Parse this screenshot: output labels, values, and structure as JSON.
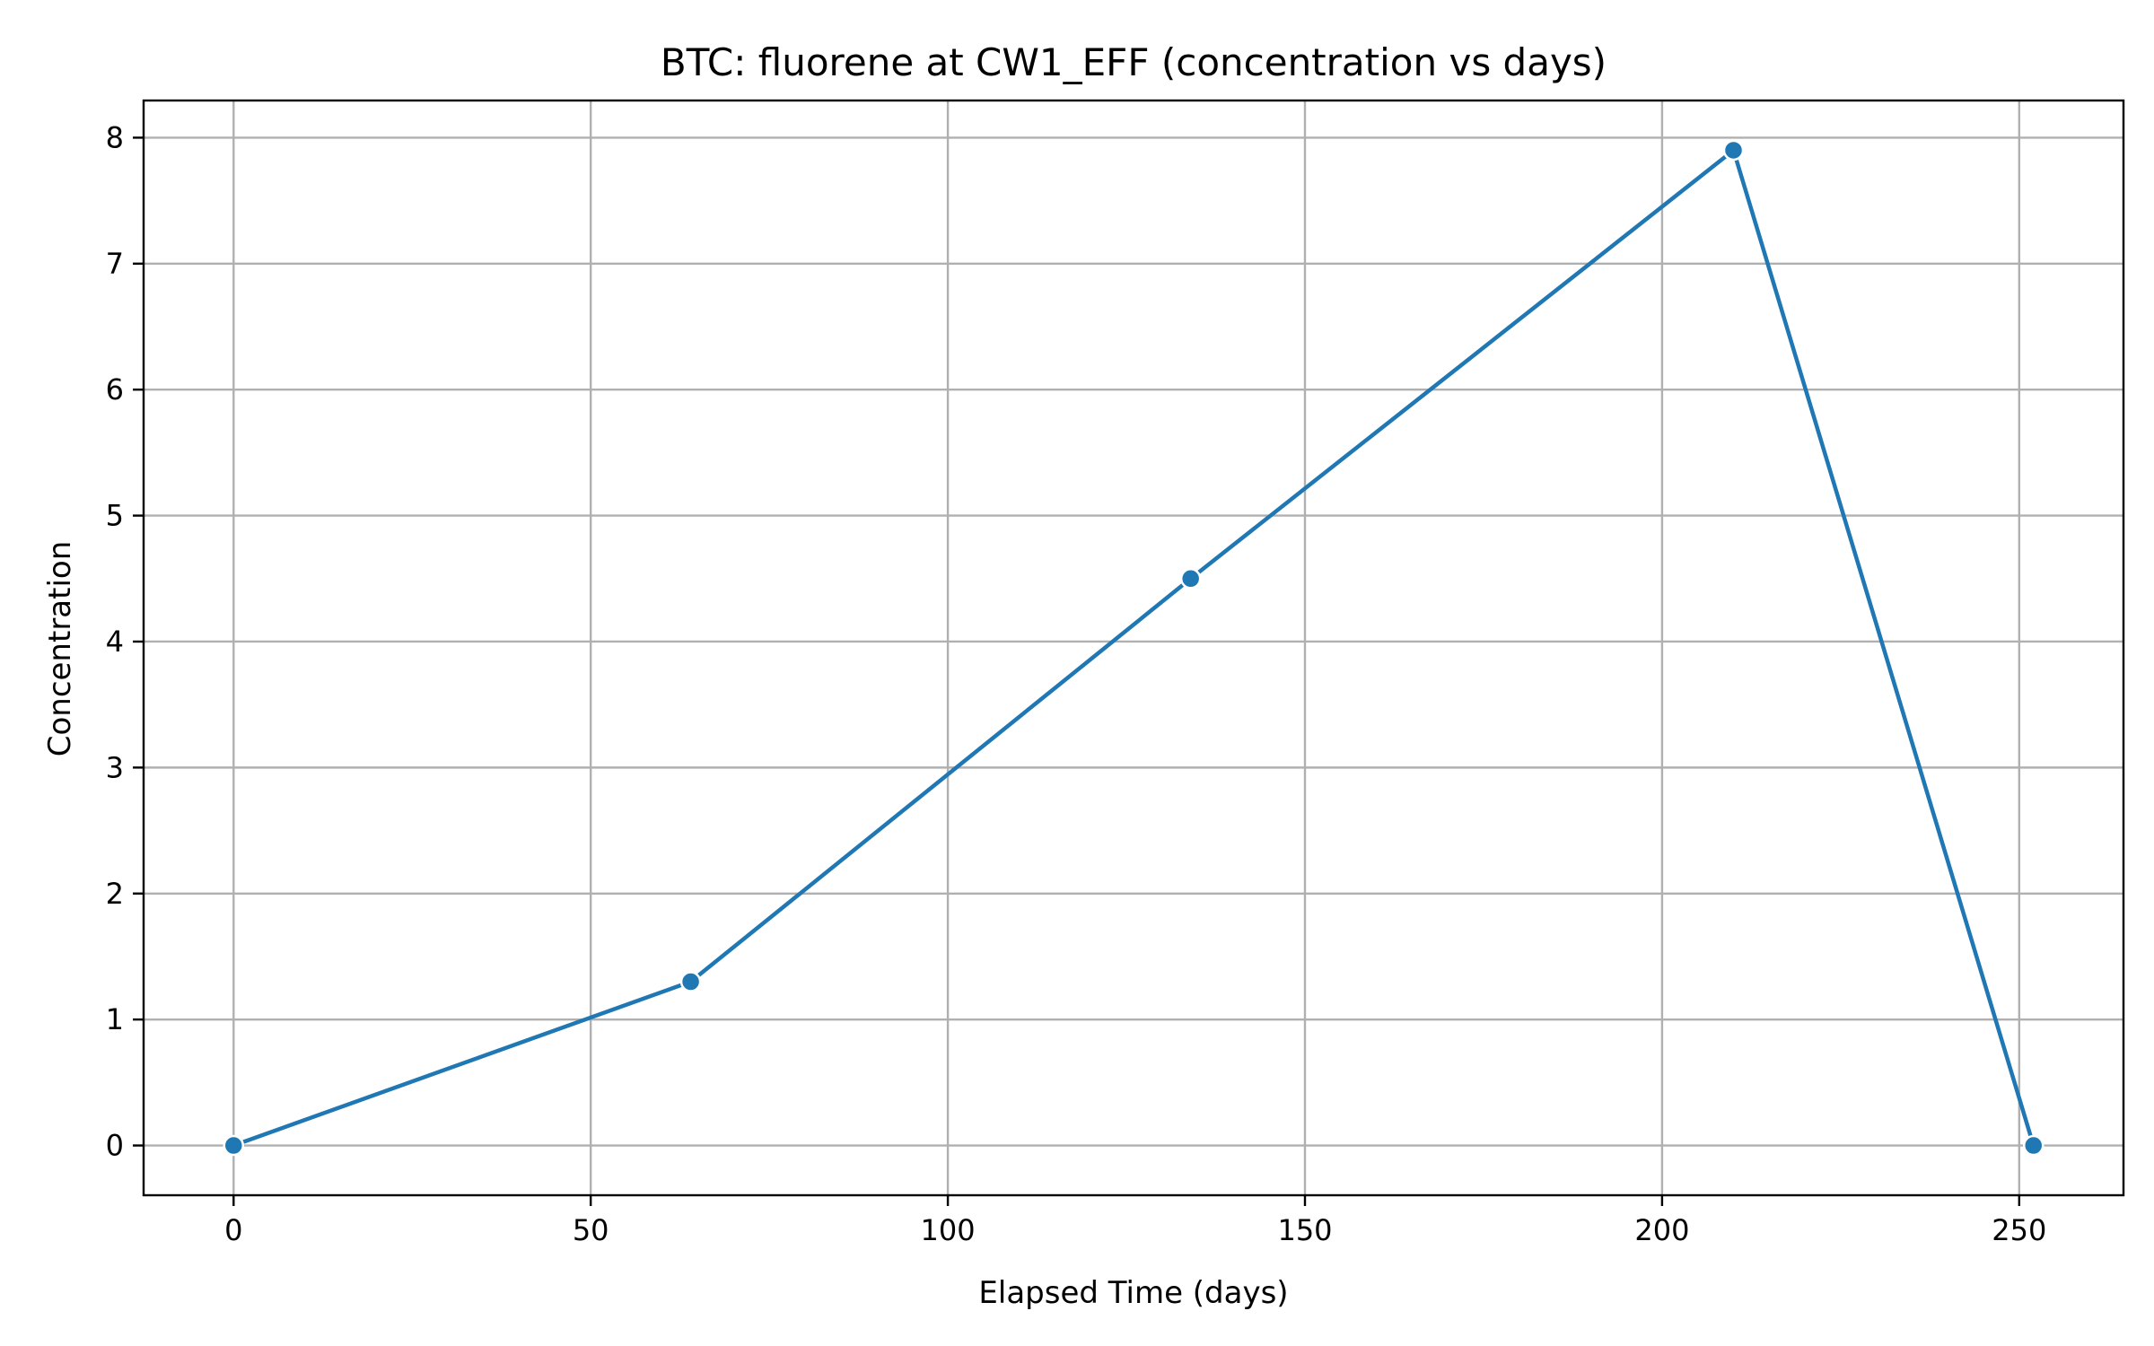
{
  "chart_data": {
    "type": "line",
    "title": "BTC: fluorene at CW1_EFF (concentration vs days)",
    "xlabel": "Elapsed Time (days)",
    "ylabel": "Concentration",
    "xlim": [
      -12.6,
      264.6
    ],
    "ylim": [
      -0.395,
      8.295
    ],
    "xticks": [
      0,
      50,
      100,
      150,
      200,
      250
    ],
    "yticks": [
      0,
      1,
      2,
      3,
      4,
      5,
      6,
      7,
      8
    ],
    "grid": true,
    "legend": "none",
    "line_color": "#1f77b4",
    "series": [
      {
        "x": [
          0,
          64,
          134,
          210,
          252
        ],
        "y": [
          0.0,
          1.3,
          4.5,
          7.9,
          0.0
        ]
      }
    ]
  }
}
